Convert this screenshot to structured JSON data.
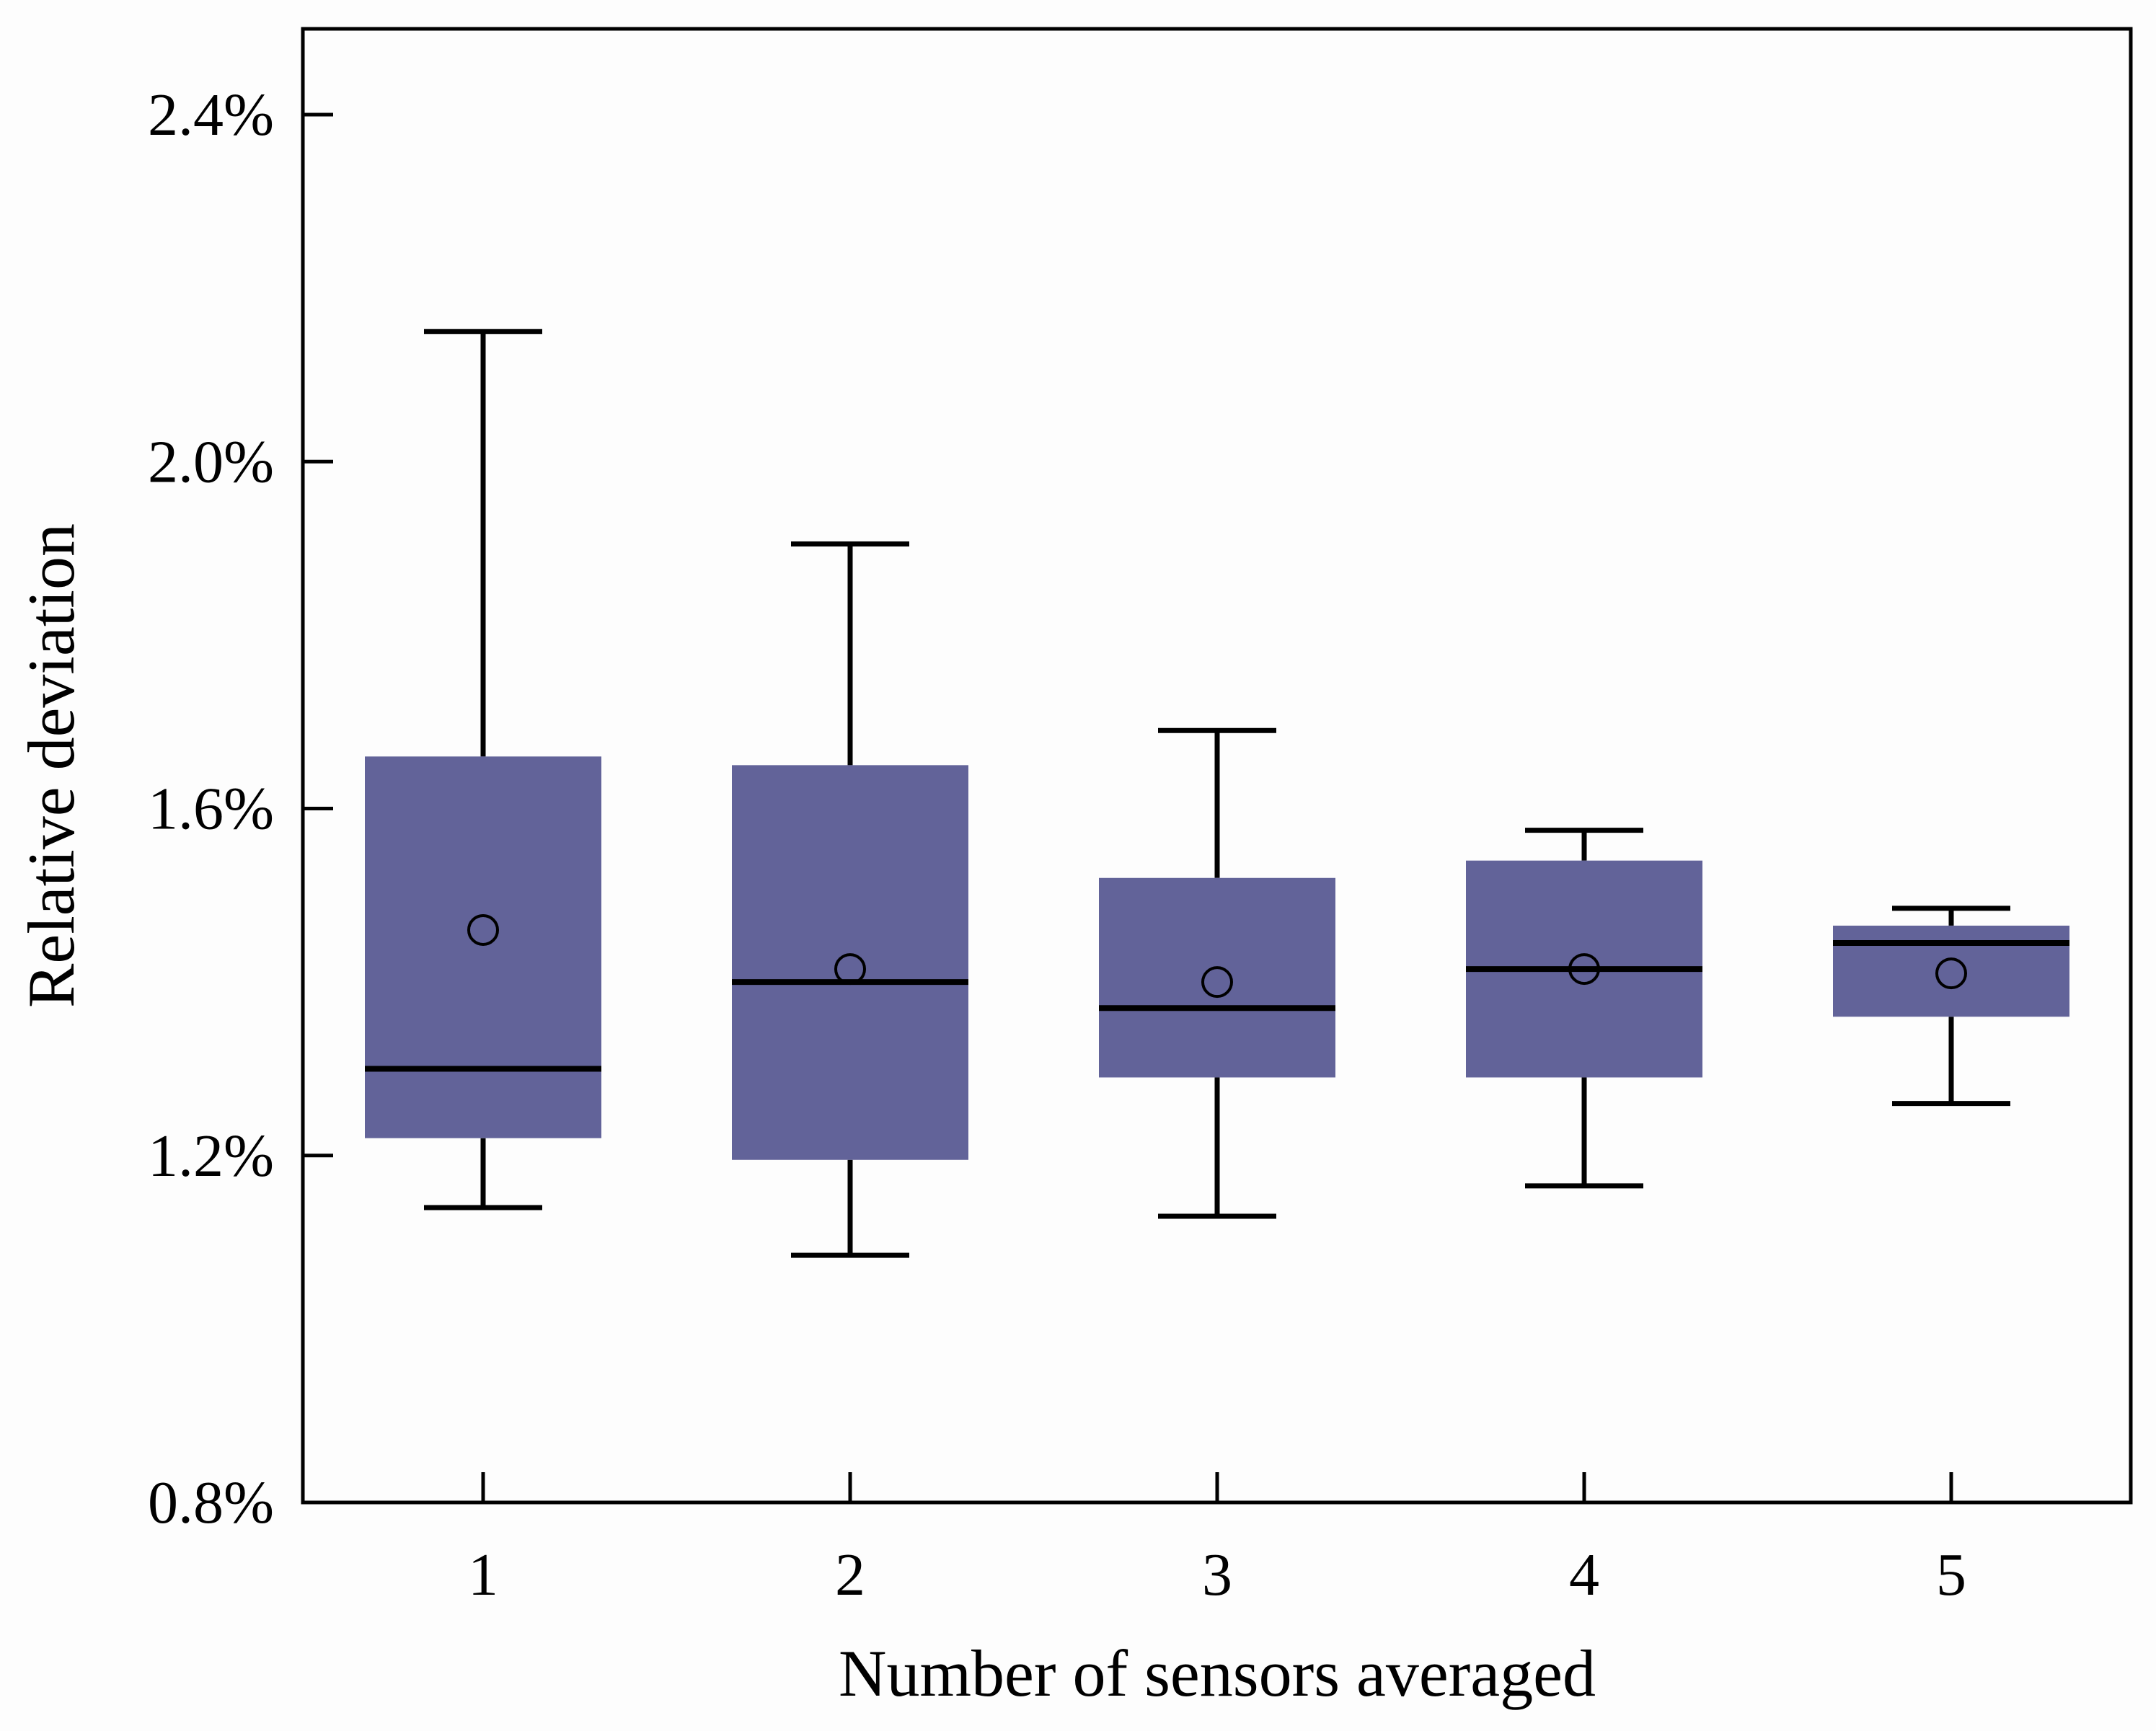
{
  "chart_data": {
    "type": "boxplot",
    "title": "",
    "xlabel": "Number of sensors averaged",
    "ylabel": "Relative deviation",
    "categories": [
      "1",
      "2",
      "3",
      "4",
      "5"
    ],
    "ylim": [
      0.8,
      2.5
    ],
    "yticks": [
      0.8,
      1.2,
      1.6,
      2.0,
      2.4
    ],
    "ytick_labels": [
      "0.8%",
      "1.2%",
      "1.6%",
      "2.0%",
      "2.4%"
    ],
    "box_color": "#626399",
    "line_color": "#000000",
    "boxes": [
      {
        "category": "1",
        "whisker_low": 1.14,
        "q1": 1.22,
        "median": 1.3,
        "q3": 1.66,
        "whisker_high": 2.15,
        "mean": 1.46
      },
      {
        "category": "2",
        "whisker_low": 1.085,
        "q1": 1.195,
        "median": 1.4,
        "q3": 1.65,
        "whisker_high": 1.905,
        "mean": 1.415
      },
      {
        "category": "3",
        "whisker_low": 1.13,
        "q1": 1.29,
        "median": 1.37,
        "q3": 1.52,
        "whisker_high": 1.69,
        "mean": 1.4
      },
      {
        "category": "4",
        "whisker_low": 1.165,
        "q1": 1.29,
        "median": 1.415,
        "q3": 1.54,
        "whisker_high": 1.575,
        "mean": 1.415
      },
      {
        "category": "5",
        "whisker_low": 1.26,
        "q1": 1.36,
        "median": 1.445,
        "q3": 1.465,
        "whisker_high": 1.485,
        "mean": 1.41
      }
    ]
  }
}
